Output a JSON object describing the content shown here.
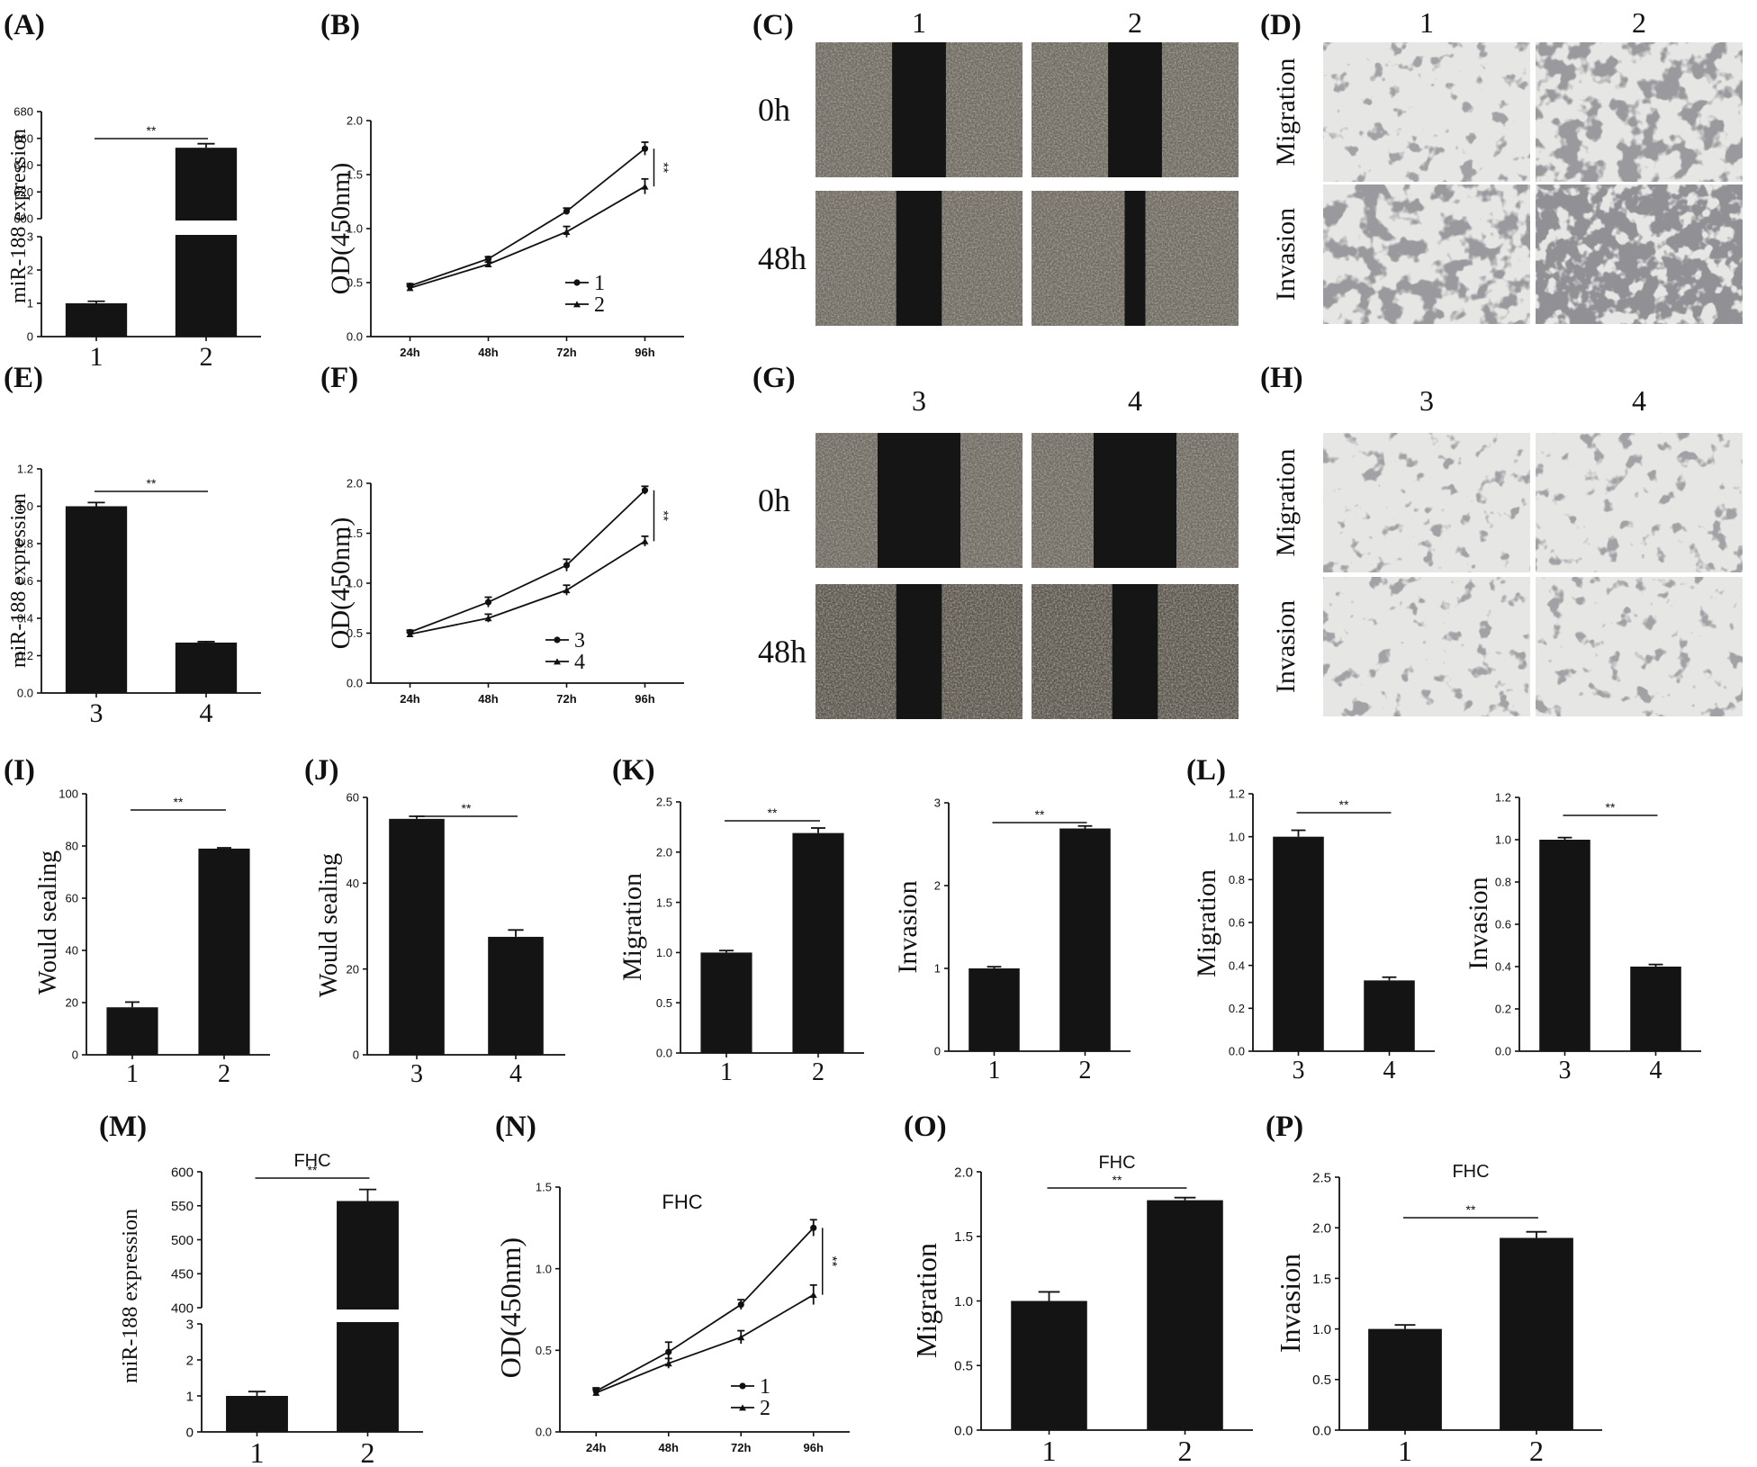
{
  "panel_labels": [
    "(A)",
    "(B)",
    "(C)",
    "(D)",
    "(E)",
    "(F)",
    "(G)",
    "(H)",
    "(I)",
    "(J)",
    "(K)",
    "(L)",
    "(M)",
    "(N)",
    "(O)",
    "(P)"
  ],
  "images": {
    "C": {
      "cols": [
        "1",
        "2"
      ],
      "rows": [
        "0h",
        "48h"
      ]
    },
    "D": {
      "cols": [
        "1",
        "2"
      ],
      "rows": [
        "Migration",
        "Invasion"
      ]
    },
    "G": {
      "cols": [
        "3",
        "4"
      ],
      "rows": [
        "0h",
        "48h"
      ]
    },
    "H": {
      "cols": [
        "3",
        "4"
      ],
      "rows": [
        "Migration",
        "Invasion"
      ]
    }
  },
  "chart_data": [
    {
      "id": "A",
      "type": "bar",
      "categories": [
        "1",
        "2"
      ],
      "values": [
        1.0,
        653
      ],
      "errors": [
        0.06,
        3
      ],
      "ylabel": "miR-188 expression",
      "axis_break": {
        "lower": [
          0,
          3
        ],
        "upper": [
          600,
          680
        ]
      },
      "lower_ticks": [
        0,
        1,
        2,
        3
      ],
      "upper_ticks": [
        600,
        620,
        640,
        660,
        680
      ],
      "significance": "**"
    },
    {
      "id": "B",
      "type": "line",
      "categories": [
        "24h",
        "48h",
        "72h",
        "96h"
      ],
      "ylabel": "OD(450nm)",
      "ylim": [
        0,
        2.0
      ],
      "yticks": [
        0.0,
        0.5,
        1.0,
        1.5,
        2.0
      ],
      "series": [
        {
          "name": "1",
          "values": [
            0.47,
            0.72,
            1.16,
            1.74
          ],
          "errors": [
            0.02,
            0.02,
            0.03,
            0.06
          ]
        },
        {
          "name": "2",
          "values": [
            0.45,
            0.67,
            0.97,
            1.39
          ],
          "errors": [
            0.02,
            0.02,
            0.05,
            0.07
          ]
        }
      ],
      "significance": "**"
    },
    {
      "id": "E",
      "type": "bar",
      "categories": [
        "3",
        "4"
      ],
      "values": [
        1.0,
        0.27
      ],
      "errors": [
        0.02,
        0.005
      ],
      "ylabel": "miR-188 expression",
      "ylim": [
        0,
        1.2
      ],
      "yticks": [
        0.0,
        0.2,
        0.4,
        0.6,
        0.8,
        1.0,
        1.2
      ],
      "significance": "**"
    },
    {
      "id": "F",
      "type": "line",
      "categories": [
        "24h",
        "48h",
        "72h",
        "96h"
      ],
      "ylabel": "OD(450nm)",
      "ylim": [
        0,
        2.0
      ],
      "yticks": [
        0.0,
        0.5,
        1.0,
        1.5,
        2.0
      ],
      "series": [
        {
          "name": "3",
          "values": [
            0.51,
            0.81,
            1.18,
            1.93
          ],
          "errors": [
            0.02,
            0.05,
            0.06,
            0.04
          ]
        },
        {
          "name": "4",
          "values": [
            0.49,
            0.65,
            0.93,
            1.42
          ],
          "errors": [
            0.02,
            0.04,
            0.05,
            0.05
          ]
        }
      ],
      "significance": "**"
    },
    {
      "id": "I",
      "type": "bar",
      "categories": [
        "1",
        "2"
      ],
      "values": [
        18.2,
        79
      ],
      "errors": [
        2,
        0.3
      ],
      "ylabel": "Would sealing",
      "ylim": [
        0,
        100
      ],
      "yticks": [
        0,
        20,
        40,
        60,
        80,
        100
      ],
      "significance": "**"
    },
    {
      "id": "J",
      "type": "bar",
      "categories": [
        "3",
        "4"
      ],
      "values": [
        55,
        27.5
      ],
      "errors": [
        0.6,
        1.6
      ],
      "ylabel": "Would sealing",
      "ylim": [
        0,
        60
      ],
      "yticks": [
        0,
        20,
        40,
        60
      ],
      "significance": "**"
    },
    {
      "id": "K1",
      "type": "bar",
      "categories": [
        "1",
        "2"
      ],
      "values": [
        1.0,
        2.19
      ],
      "errors": [
        0.02,
        0.05
      ],
      "ylabel": "Migration",
      "ylim": [
        0,
        2.5
      ],
      "yticks": [
        0.0,
        0.5,
        1.0,
        1.5,
        2.0,
        2.5
      ],
      "significance": "**"
    },
    {
      "id": "K2",
      "type": "bar",
      "categories": [
        "1",
        "2"
      ],
      "values": [
        1.0,
        2.69
      ],
      "errors": [
        0.02,
        0.03
      ],
      "ylabel": "Invasion",
      "ylim": [
        0,
        3
      ],
      "yticks": [
        0,
        1,
        2,
        3
      ],
      "significance": "**"
    },
    {
      "id": "L1",
      "type": "bar",
      "categories": [
        "3",
        "4"
      ],
      "values": [
        1.0,
        0.33
      ],
      "errors": [
        0.03,
        0.015
      ],
      "ylabel": "Migration",
      "ylim": [
        0,
        1.2
      ],
      "yticks": [
        0.0,
        0.2,
        0.4,
        0.6,
        0.8,
        1.0,
        1.2
      ],
      "significance": "**"
    },
    {
      "id": "L2",
      "type": "bar",
      "categories": [
        "3",
        "4"
      ],
      "values": [
        1.0,
        0.4
      ],
      "errors": [
        0.01,
        0.01
      ],
      "ylabel": "Invasion",
      "ylim": [
        0,
        1.2
      ],
      "yticks": [
        0.0,
        0.2,
        0.4,
        0.6,
        0.8,
        1.0,
        1.2
      ],
      "significance": "**"
    },
    {
      "id": "M",
      "type": "bar",
      "title": "FHC",
      "categories": [
        "1",
        "2"
      ],
      "values": [
        1.0,
        557
      ],
      "errors": [
        0.12,
        17
      ],
      "ylabel": "miR-188 expression",
      "axis_break": {
        "lower": [
          0,
          3
        ],
        "upper": [
          400,
          600
        ]
      },
      "lower_ticks": [
        0,
        1,
        2,
        3
      ],
      "upper_ticks": [
        400,
        450,
        500,
        550,
        600
      ],
      "significance": "**"
    },
    {
      "id": "N",
      "type": "line",
      "title": "FHC",
      "categories": [
        "24h",
        "48h",
        "72h",
        "96h"
      ],
      "ylabel": "OD(450nm)",
      "ylim": [
        0,
        1.5
      ],
      "yticks": [
        0.0,
        0.5,
        1.0,
        1.5
      ],
      "series": [
        {
          "name": "1",
          "values": [
            0.25,
            0.49,
            0.78,
            1.25
          ],
          "errors": [
            0.02,
            0.06,
            0.03,
            0.05
          ]
        },
        {
          "name": "2",
          "values": [
            0.24,
            0.42,
            0.58,
            0.84
          ],
          "errors": [
            0.02,
            0.03,
            0.04,
            0.06
          ]
        }
      ],
      "significance": "**"
    },
    {
      "id": "O",
      "type": "bar",
      "title": "FHC",
      "categories": [
        "1",
        "2"
      ],
      "values": [
        1.0,
        1.78
      ],
      "errors": [
        0.07,
        0.02
      ],
      "ylabel": "Migration",
      "ylim": [
        0,
        2.0
      ],
      "yticks": [
        0.0,
        0.5,
        1.0,
        1.5,
        2.0
      ],
      "significance": "**"
    },
    {
      "id": "P",
      "type": "bar",
      "title": "FHC",
      "categories": [
        "1",
        "2"
      ],
      "values": [
        1.0,
        1.9
      ],
      "errors": [
        0.04,
        0.06
      ],
      "ylabel": "Invasion",
      "ylim": [
        0,
        2.5
      ],
      "yticks": [
        0.0,
        0.5,
        1.0,
        1.5,
        2.0,
        2.5
      ],
      "significance": "**"
    }
  ]
}
